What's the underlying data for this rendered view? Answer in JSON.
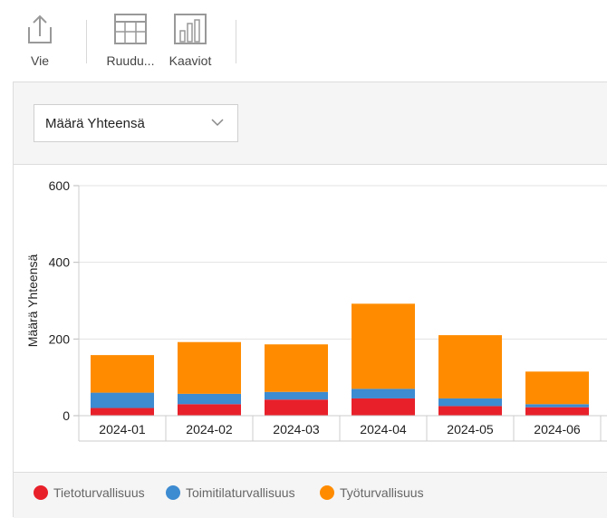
{
  "toolbar": {
    "export_label": "Vie",
    "grid_label": "Ruudu...",
    "charts_label": "Kaaviot"
  },
  "controls": {
    "measure_select": "Määrä Yhteensä"
  },
  "colors": {
    "Tietoturvallisuus": "#e8202a",
    "Toimitilaturvallisuus": "#3d8bd1",
    "Työturvallisuus": "#ff8c00"
  },
  "chart_data": {
    "type": "bar",
    "stacked": true,
    "categories": [
      "2024-01",
      "2024-02",
      "2024-03",
      "2024-04",
      "2024-05",
      "2024-06"
    ],
    "series": [
      {
        "name": "Tietoturvallisuus",
        "values": [
          20,
          30,
          42,
          45,
          25,
          22
        ]
      },
      {
        "name": "Toimitilaturvallisuus",
        "values": [
          40,
          27,
          20,
          25,
          20,
          8
        ]
      },
      {
        "name": "Työturvallisuus",
        "values": [
          98,
          135,
          124,
          222,
          165,
          85
        ]
      }
    ],
    "ylabel": "Määrä Yhteensä",
    "xlabel": "",
    "ylim": [
      0,
      600
    ],
    "yticks": [
      0,
      200,
      400,
      600
    ],
    "grid": true,
    "legend_position": "bottom"
  }
}
